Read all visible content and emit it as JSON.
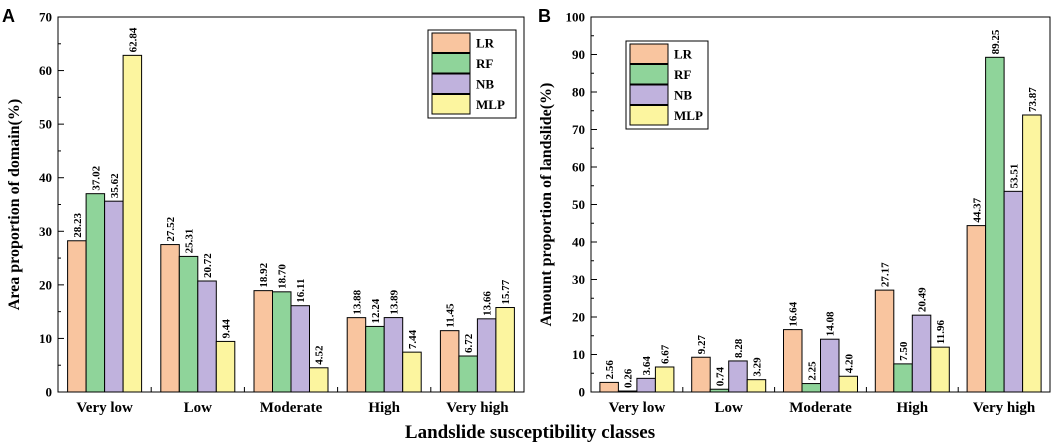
{
  "colors": {
    "LR": "#f9c59f",
    "RF": "#8fd49a",
    "NB": "#c0b2dd",
    "MLP": "#fcf59f"
  },
  "xlabel": "Landslide susceptibility classes",
  "chart_data": [
    {
      "type": "bar",
      "panel": "A",
      "ylabel": "Area proportion of domain(%)",
      "ylim": [
        0,
        70
      ],
      "yticks": [
        0,
        10,
        20,
        30,
        40,
        50,
        60,
        70
      ],
      "categories": [
        "Very low",
        "Low",
        "Moderate",
        "High",
        "Very high"
      ],
      "legend_position": "top-right",
      "series": [
        {
          "name": "LR",
          "values": [
            28.23,
            27.52,
            18.92,
            13.88,
            11.45
          ],
          "labels": [
            "28.23",
            "27.52",
            "18.92",
            "13.88",
            "11.45"
          ]
        },
        {
          "name": "RF",
          "values": [
            37.02,
            25.31,
            18.7,
            12.24,
            6.72
          ],
          "labels": [
            "37.02",
            "25.31",
            "18.70",
            "12.24",
            "6.72"
          ]
        },
        {
          "name": "NB",
          "values": [
            35.62,
            20.72,
            16.11,
            13.89,
            13.66
          ],
          "labels": [
            "35.62",
            "20.72",
            "16.11",
            "13.89",
            "13.66"
          ]
        },
        {
          "name": "MLP",
          "values": [
            62.84,
            9.44,
            4.52,
            7.44,
            15.77
          ],
          "labels": [
            "62.84",
            "9.44",
            "4.52",
            "7.44",
            "15.77"
          ]
        }
      ]
    },
    {
      "type": "bar",
      "panel": "B",
      "ylabel": "Amount proportion of landslide(%)",
      "ylim": [
        0,
        100
      ],
      "yticks": [
        0,
        10,
        20,
        30,
        40,
        50,
        60,
        70,
        80,
        90,
        100
      ],
      "categories": [
        "Very low",
        "Low",
        "Moderate",
        "High",
        "Very high"
      ],
      "legend_position": "top-left",
      "series": [
        {
          "name": "LR",
          "values": [
            2.56,
            9.27,
            16.64,
            27.17,
            44.37
          ],
          "labels": [
            "2.56",
            "9.27",
            "16.64",
            "27.17",
            "44.37"
          ]
        },
        {
          "name": "RF",
          "values": [
            0.26,
            0.74,
            2.25,
            7.5,
            89.25
          ],
          "labels": [
            "0.26",
            "0.74",
            "2.25",
            "7.50",
            "89.25"
          ]
        },
        {
          "name": "NB",
          "values": [
            3.64,
            8.28,
            14.08,
            20.49,
            53.51
          ],
          "labels": [
            "3.64",
            "8.28",
            "14.08",
            "20.49",
            "53.51"
          ]
        },
        {
          "name": "MLP",
          "values": [
            6.67,
            3.29,
            4.2,
            11.96,
            73.87
          ],
          "labels": [
            "6.67",
            "3.29",
            "4.20",
            "11.96",
            "73.87"
          ]
        }
      ]
    }
  ]
}
